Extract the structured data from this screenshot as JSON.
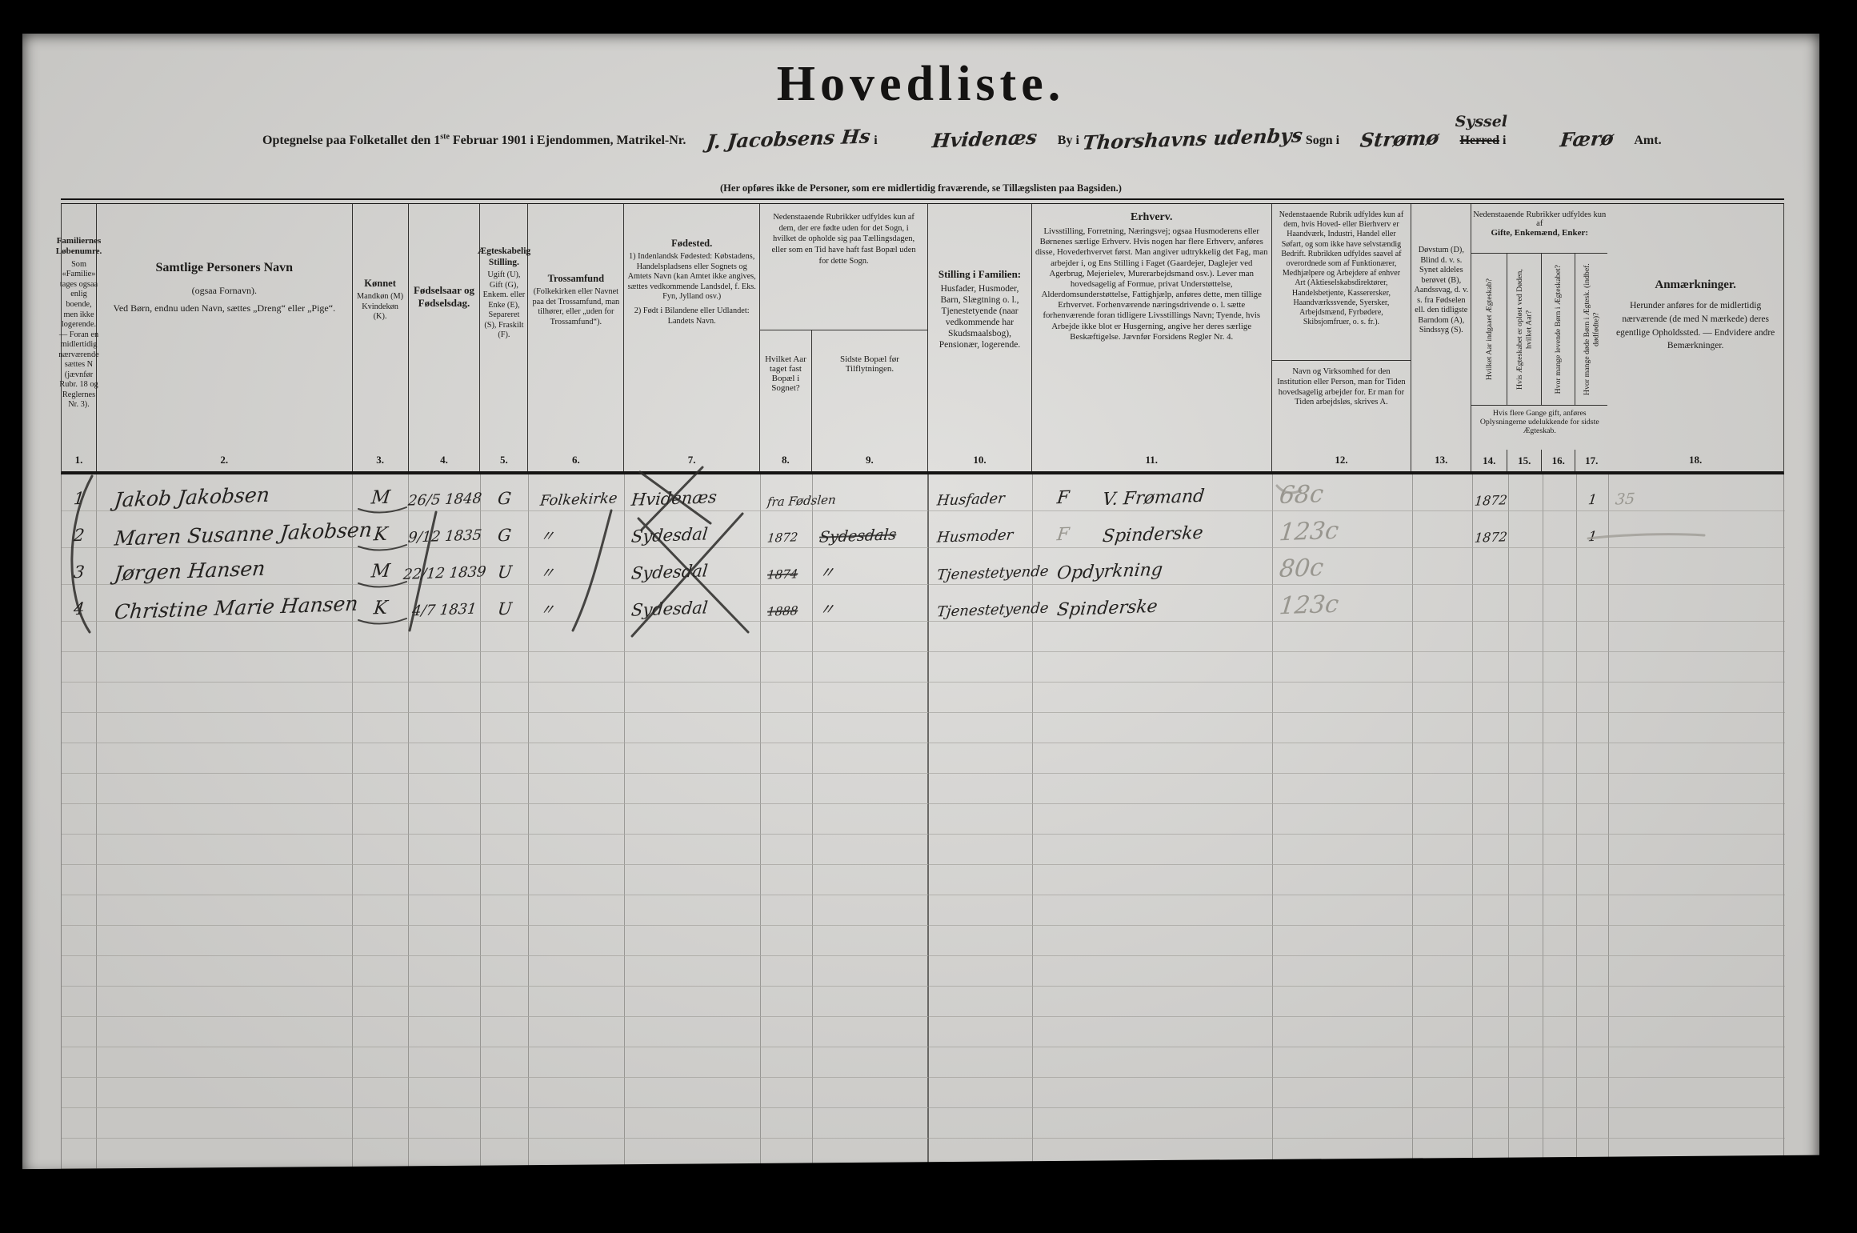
{
  "colors": {
    "ink": "#2b2a28",
    "pencil": "#98968f",
    "paper": "#d6d5d2"
  },
  "header": {
    "title": "Hovedliste.",
    "line": {
      "printed_intro_a": "Optegnelse paa Folketallet den 1",
      "printed_intro_sup": "ste",
      "printed_intro_b": " Februar 1901 i Ejendommen, Matrikel-Nr.",
      "matrikel_value": "J. Jacobsens Hs",
      "printed_i": "i",
      "by_value": "Hvidenæs",
      "printed_by": "By i",
      "sogn_value": "Thorshavns udenbys",
      "printed_sogn": "Sogn i",
      "herred_value": "Strømø",
      "printed_herred_word": "Herred",
      "printed_herred_i": "i",
      "herred_correction": "Syssel",
      "amt_value": "Færø",
      "printed_amt": "Amt."
    },
    "note": "(Her opføres ikke de Personer, som ere midlertidig fraværende, se Tillægslisten paa Bagsiden.)"
  },
  "table": {
    "group_8_9": "Nedenstaaende Rubrikker udfyldes kun af dem, der ere fødte uden for det Sogn, i hvilket de opholde sig paa Tællingsdagen, eller som en Tid have haft fast Bopæl uden for dette Sogn.",
    "group_14_17": {
      "top": "Nedenstaaende Rubrikker udfyldes kun af",
      "bold": "Gifte, Enkemænd, Enker:",
      "note": "Hvis flere Gange gift, anføres Oplysningerne udelukkende for sidste Ægteskab."
    },
    "columns": [
      {
        "no": "1.",
        "title": "Familiernes Løbenumre.",
        "desc": "Som «Familie» tages ogsaa enlig boende, men ikke logerende. — Foran en midlertidig nærværende sættes N (jævnfør Rubr. 18 og Reglernes Nr. 3)."
      },
      {
        "no": "2.",
        "title": "Samtlige Personers Navn",
        "sub": "(ogsaa Fornavn).",
        "desc": "Ved Børn, endnu uden Navn, sættes „Dreng“ eller „Pige“."
      },
      {
        "no": "3.",
        "title": "Kønnet",
        "desc": "Mandkøn (M) Kvindekøn (K)."
      },
      {
        "no": "4.",
        "title": "Fødselsaar og Fødselsdag."
      },
      {
        "no": "5.",
        "title": "Ægteskabelig Stilling.",
        "desc": "Ugift (U), Gift (G), Enkem. eller Enke (E), Separeret (S), Fraskilt (F)."
      },
      {
        "no": "6.",
        "title": "Trossamfund",
        "desc": "(Folkekirken eller Navnet paa det Trossamfund, man tilhører, eller „uden for Trossamfund“)."
      },
      {
        "no": "7.",
        "title": "Fødested.",
        "desc": "1) Indenlandsk Fødested: Købstadens, Handelspladsens eller Sognets og Amtets Navn (kan Amtet ikke angives, sættes vedkommende Landsdel, f. Eks. Fyn, Jylland osv.)",
        "desc2": "2) Født i Bilandene eller Udlandet: Landets Navn."
      },
      {
        "no": "8.",
        "title": "Hvilket Aar taget fast Bopæl i Sognet?"
      },
      {
        "no": "9.",
        "title": "Sidste Bopæl før Tilflytningen."
      },
      {
        "no": "10.",
        "title": "Stilling i Familien:",
        "desc": "Husfader, Husmoder, Barn, Slægtning o. l., Tjenestetyende (naar vedkommende har Skudsmaalsbog), Pensionær, logerende."
      },
      {
        "no": "11.",
        "title": "Erhverv.",
        "desc": "Livsstilling, Forretning, Næringsvej; ogsaa Husmoderens eller Børnenes særlige Erhverv. Hvis nogen har flere Erhverv, anføres disse, Hovederhvervet først. Man angiver udtrykkelig det Fag, man arbejder i, og Ens Stilling i Faget (Gaardejer, Daglejer ved Agerbrug, Mejerielev, Murerarbejdsmand osv.). Lever man hovedsagelig af Formue, privat Understøttelse, Alderdomsunderstøttelse, Fattighjælp, anføres dette, men tillige Erhvervet. Forhenværende næringsdrivende o. l. sætte forhenværende foran tidligere Livsstillings Navn; Tyende, hvis Arbejde ikke blot er Husgerning, angive her deres særlige Beskæftigelse. Jævnfør Forsidens Regler Nr. 4."
      },
      {
        "no": "12.",
        "title_top": "Nedenstaaende Rubrik udfyldes kun af dem, hvis Hoved- eller Bierhverv er Haandværk, Industri, Handel eller Søfart, og som ikke have selvstændig Bedrift. Rubrikken udfyldes saavel af overordnede som af Funktionærer, Medhjælpere og Arbejdere af enhver Art (Aktieselskabsdirektører, Handelsbetjente, Kasserersker, Haandværkssvende, Syersker, Arbejdsmænd, Fyrbødere, Skibsjomfruer, o. s. fr.).",
        "title_bottom": "Navn og Virksomhed for den Institution eller Person, man for Tiden hovedsagelig arbejder for. Er man for Tiden arbejdsløs, skrives A."
      },
      {
        "no": "13.",
        "title": "Døvstum (D), Blind d. v. s. Synet aldeles berøvet (B), Aandssvag, d. v. s. fra Fødselen ell. den tidligste Barndom (A), Sindssyg (S)."
      },
      {
        "no": "14.",
        "title": "Hvilket Aar indgaaet Ægteskab?"
      },
      {
        "no": "15.",
        "title": "Hvis Ægteskabet er opløst ved Døden, hvilket Aar?"
      },
      {
        "no": "16.",
        "title": "Hvor mange levende Børn i Ægteskabet?"
      },
      {
        "no": "17.",
        "title": "Hvor mange døde Børn i Ægtesk. (indbef. dødfødte)?"
      },
      {
        "no": "18.",
        "title": "Anmærkninger.",
        "desc": "Herunder anføres for de midlertidig nærværende (de med N mærkede) deres egentlige Opholdssted. — Endvidere andre Bemærkninger."
      }
    ],
    "rows": [
      [
        "1",
        "Jakob Jakobsen",
        "M",
        "26/5 1848",
        "G",
        "Folkekirke",
        {
          "t": "Hvidenæs"
        },
        "fra Fødslen",
        "",
        "Husfader",
        {
          "t": "V. Frømand",
          "mark": "F"
        },
        {
          "t": "68c",
          "p": 1
        },
        "",
        "1872",
        "",
        "",
        "1",
        {
          "t": "35",
          "p": 1
        }
      ],
      [
        "2",
        "Maren Susanne Jakobsen",
        "K",
        "9/12 1835",
        "G",
        "〃",
        {
          "t": "Sydesdal"
        },
        "1872",
        {
          "t": "Sydesdals",
          "s": 1
        },
        "Husmoder",
        {
          "t": "Spinderske",
          "mark": "F",
          "markp": 1
        },
        {
          "t": "123c",
          "p": 1
        },
        "",
        "1872",
        "",
        "",
        "1",
        ""
      ],
      [
        "3",
        "Jørgen Hansen",
        "M",
        "22/12 1839",
        "U",
        "〃",
        {
          "t": "Sydesdal"
        },
        {
          "t": "1874",
          "s": 1
        },
        "〃",
        "Tjenestetyende",
        "Opdyrkning",
        {
          "t": "80c",
          "p": 1
        },
        "",
        "",
        "",
        "",
        "",
        ""
      ],
      [
        "4",
        "Christine Marie Hansen",
        "K",
        "4/7 1831",
        "U",
        "〃",
        {
          "t": "Sydesdal"
        },
        {
          "t": "1888",
          "s": 1
        },
        "〃",
        "Tjenestetyende",
        "Spinderske",
        {
          "t": "123c",
          "p": 1
        },
        "",
        "",
        "",
        "",
        "",
        ""
      ]
    ]
  }
}
